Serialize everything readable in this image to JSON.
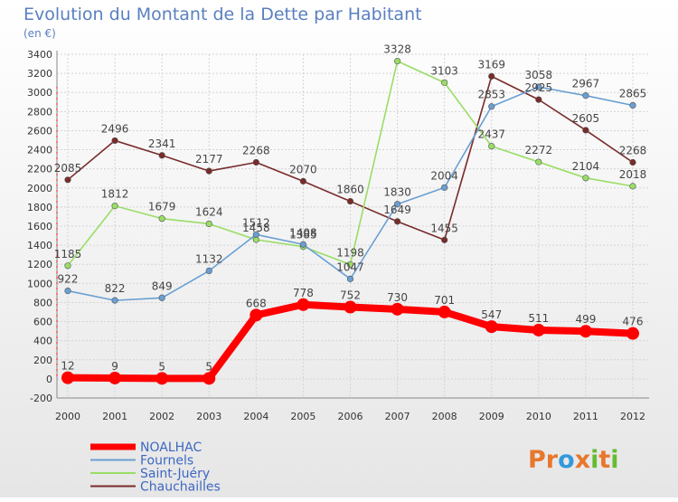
{
  "chart_data": {
    "type": "line",
    "title": "Evolution du Montant de la Dette par Habitant",
    "subtitle": "(en €)",
    "xlabel": "",
    "ylabel": "",
    "ylim": [
      -200,
      3400
    ],
    "y_ticks": [
      -200,
      0,
      200,
      400,
      600,
      800,
      1000,
      1200,
      1400,
      1600,
      1800,
      2000,
      2200,
      2400,
      2600,
      2800,
      3000,
      3200,
      3400
    ],
    "grid": true,
    "legend_position": "bottom-left",
    "categories": [
      "2000",
      "2001",
      "2002",
      "2003",
      "2004",
      "2005",
      "2006",
      "2007",
      "2008",
      "2009",
      "2010",
      "2011",
      "2012"
    ],
    "series": [
      {
        "name": "NOALHAC",
        "color": "#ff0000",
        "values": [
          12,
          9,
          5,
          5,
          668,
          778,
          752,
          730,
          701,
          547,
          511,
          499,
          476
        ]
      },
      {
        "name": "Fournels",
        "color": "#6a9fd3",
        "values": [
          922,
          822,
          849,
          1132,
          1512,
          1408,
          1047,
          1830,
          2004,
          2853,
          3058,
          2967,
          2865
        ]
      },
      {
        "name": "Saint-Juéry",
        "color": "#99dd66",
        "values": [
          1185,
          1812,
          1679,
          1624,
          1458,
          1385,
          1198,
          3328,
          3103,
          2437,
          2272,
          2104,
          2018
        ]
      },
      {
        "name": "Chauchailles",
        "color": "#7a2a2a",
        "values": [
          2085,
          2496,
          2341,
          2177,
          2268,
          2070,
          1860,
          1649,
          1455,
          3169,
          2925,
          2605,
          2268
        ]
      }
    ]
  },
  "brand": {
    "logo_text": "Proxiti"
  }
}
